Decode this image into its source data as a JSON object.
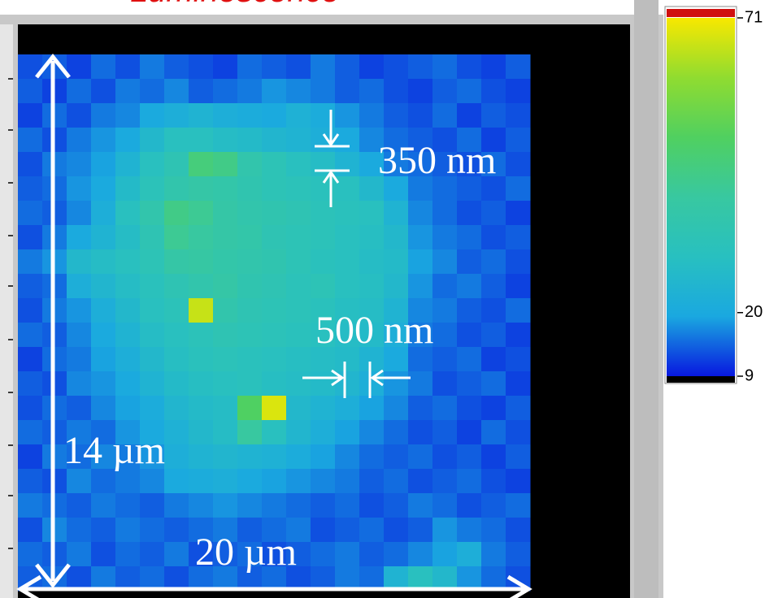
{
  "chart_data": {
    "type": "heatmap",
    "title": "Luminescence",
    "title_color": "#e01010",
    "z": [
      [
        13,
        14,
        12,
        15,
        13,
        16,
        14,
        13,
        12,
        15,
        14,
        13,
        16,
        14,
        12,
        13,
        14,
        15,
        13,
        12,
        14
      ],
      [
        14,
        12,
        15,
        13,
        16,
        15,
        17,
        14,
        15,
        16,
        18,
        17,
        16,
        14,
        15,
        13,
        12,
        14,
        15,
        13,
        12
      ],
      [
        12,
        15,
        13,
        16,
        17,
        20,
        22,
        24,
        22,
        21,
        20,
        23,
        21,
        18,
        16,
        14,
        13,
        15,
        12,
        14,
        13
      ],
      [
        15,
        13,
        16,
        18,
        20,
        26,
        30,
        30,
        28,
        27,
        25,
        24,
        22,
        20,
        17,
        15,
        14,
        13,
        15,
        12,
        14
      ],
      [
        13,
        16,
        17,
        19,
        24,
        30,
        34,
        46,
        44,
        36,
        33,
        30,
        28,
        24,
        20,
        16,
        15,
        14,
        13,
        15,
        13
      ],
      [
        14,
        15,
        18,
        20,
        27,
        32,
        36,
        38,
        37,
        35,
        33,
        32,
        31,
        30,
        26,
        20,
        16,
        15,
        14,
        13,
        15
      ],
      [
        15,
        14,
        17,
        22,
        30,
        36,
        44,
        42,
        38,
        36,
        35,
        34,
        32,
        31,
        30,
        24,
        17,
        15,
        13,
        14,
        12
      ],
      [
        13,
        16,
        20,
        24,
        28,
        34,
        42,
        40,
        38,
        37,
        34,
        33,
        32,
        30,
        29,
        26,
        18,
        16,
        15,
        13,
        14
      ],
      [
        16,
        18,
        26,
        28,
        30,
        33,
        38,
        39,
        37,
        36,
        35,
        33,
        31,
        30,
        28,
        27,
        19,
        17,
        14,
        15,
        13
      ],
      [
        14,
        15,
        22,
        25,
        28,
        31,
        34,
        36,
        38,
        35,
        34,
        32,
        33,
        30,
        29,
        26,
        18,
        15,
        16,
        14,
        12
      ],
      [
        13,
        16,
        18,
        22,
        26,
        30,
        32,
        66,
        36,
        34,
        33,
        32,
        31,
        29,
        28,
        24,
        17,
        16,
        14,
        13,
        15
      ],
      [
        15,
        14,
        17,
        20,
        24,
        28,
        30,
        32,
        34,
        33,
        32,
        31,
        30,
        28,
        27,
        22,
        16,
        15,
        13,
        14,
        12
      ],
      [
        12,
        15,
        16,
        19,
        22,
        26,
        29,
        31,
        32,
        31,
        30,
        29,
        28,
        27,
        24,
        20,
        15,
        14,
        15,
        12,
        13
      ],
      [
        14,
        13,
        17,
        18,
        20,
        24,
        27,
        29,
        30,
        31,
        29,
        28,
        27,
        25,
        22,
        18,
        16,
        13,
        14,
        15,
        12
      ],
      [
        13,
        15,
        14,
        17,
        19,
        21,
        25,
        27,
        28,
        50,
        68,
        26,
        24,
        22,
        19,
        17,
        14,
        15,
        13,
        12,
        14
      ],
      [
        15,
        14,
        16,
        15,
        18,
        20,
        23,
        26,
        28,
        40,
        30,
        25,
        22,
        19,
        17,
        15,
        13,
        14,
        12,
        15,
        13
      ],
      [
        12,
        16,
        15,
        17,
        16,
        18,
        22,
        24,
        25,
        24,
        23,
        21,
        19,
        17,
        15,
        14,
        15,
        13,
        14,
        12,
        14
      ],
      [
        14,
        13,
        17,
        15,
        16,
        17,
        20,
        21,
        22,
        20,
        19,
        18,
        17,
        16,
        14,
        15,
        13,
        14,
        15,
        13,
        12
      ],
      [
        16,
        15,
        14,
        16,
        15,
        14,
        16,
        17,
        18,
        17,
        16,
        15,
        14,
        15,
        13,
        14,
        16,
        15,
        13,
        14,
        15
      ],
      [
        13,
        17,
        15,
        14,
        16,
        15,
        14,
        15,
        16,
        14,
        15,
        16,
        13,
        14,
        15,
        13,
        14,
        18,
        16,
        15,
        13
      ],
      [
        15,
        14,
        16,
        13,
        15,
        14,
        16,
        13,
        14,
        15,
        13,
        14,
        15,
        16,
        14,
        15,
        17,
        19,
        22,
        16,
        14
      ],
      [
        14,
        15,
        13,
        16,
        14,
        15,
        13,
        15,
        16,
        14,
        15,
        13,
        14,
        16,
        15,
        24,
        30,
        26,
        18,
        15,
        13
      ]
    ],
    "clim": [
      9,
      71
    ],
    "cticks": [
      9,
      20,
      71
    ],
    "colors": [
      "#0818e0",
      "#1aa8e0",
      "#28c0c0",
      "#38c8a0",
      "#50d060",
      "#90dc30",
      "#f8e800"
    ],
    "annotations": [
      "350 nm",
      "500 nm",
      "14 µm",
      "20 µm"
    ]
  }
}
